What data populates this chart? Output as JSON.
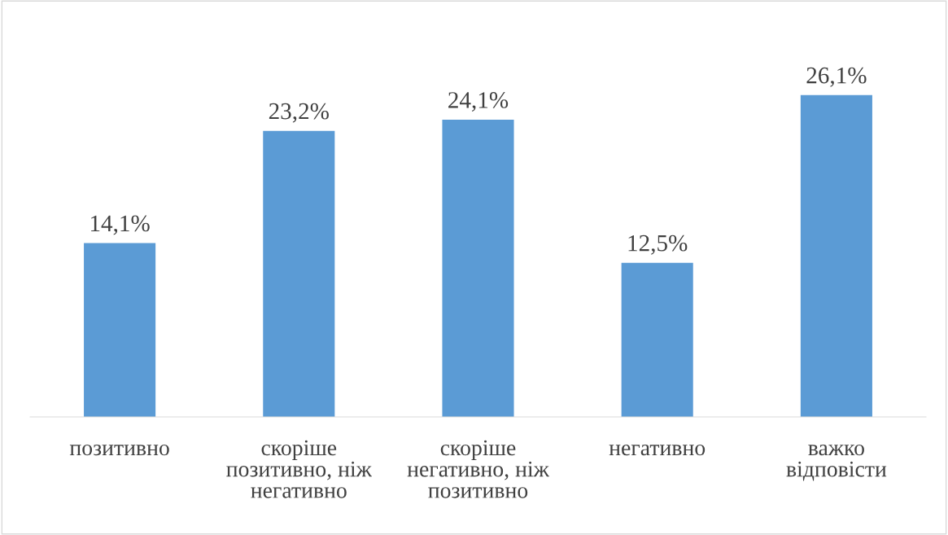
{
  "chart_data": {
    "type": "bar",
    "categories": [
      "позитивно",
      "скоріше\nпозитивно, ніж\nнегативно",
      "скоріше\nнегативно, ніж\nпозитивно",
      "негативно",
      "важко\nвідповісти"
    ],
    "values": [
      14.1,
      23.2,
      24.1,
      12.5,
      26.1
    ],
    "value_labels": [
      "14,1%",
      "23,2%",
      "24,1%",
      "12,5%",
      "26,1%"
    ],
    "color": "#5b9bd5"
  }
}
